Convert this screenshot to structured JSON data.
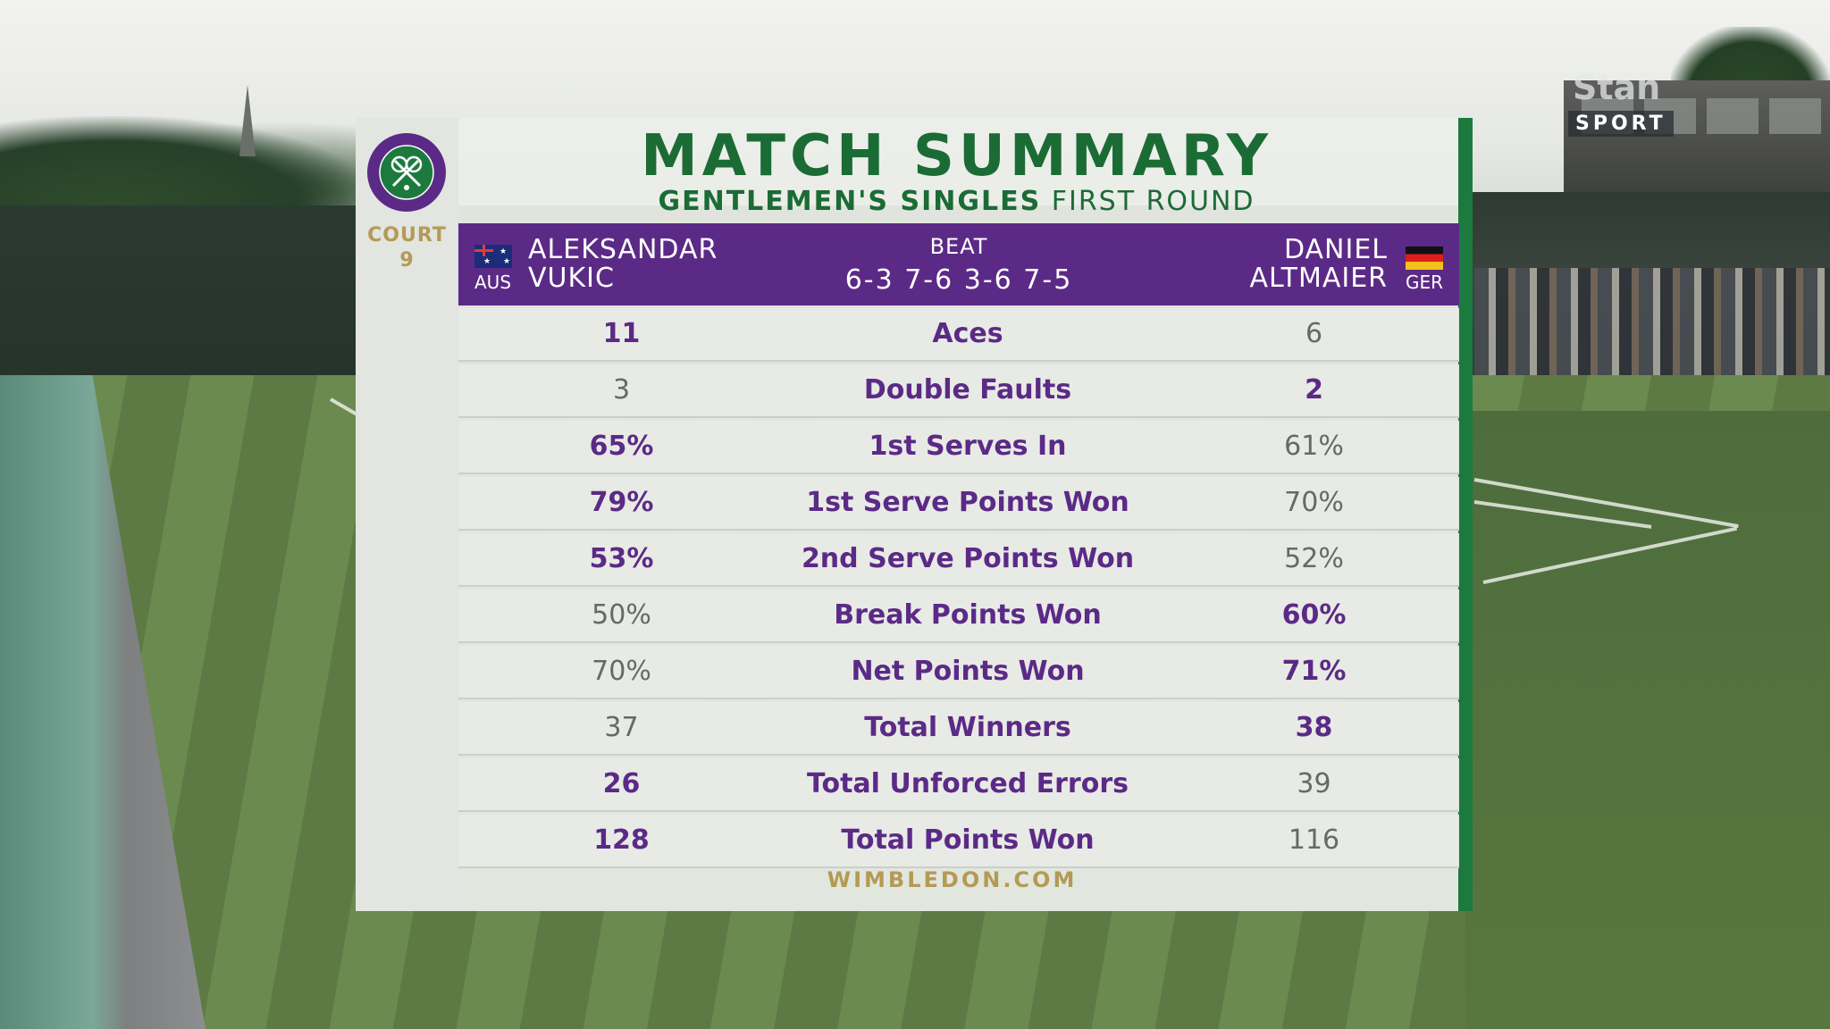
{
  "broadcaster": {
    "logo_text": "Stan",
    "sub_text": "SPORT"
  },
  "graphic": {
    "logo_name": "wimbledon-logo",
    "court_label": "COURT",
    "court_number": "9",
    "title": "MATCH SUMMARY",
    "subtitle_bold": "GENTLEMEN'S SINGLES",
    "subtitle_rest": "FIRST ROUND",
    "player1": {
      "first": "ALEKSANDAR",
      "last": "VUKIC",
      "country": "AUS",
      "flag": "australia-flag-icon"
    },
    "player2": {
      "first": "DANIEL",
      "last": "ALTMAIER",
      "country": "GER",
      "flag": "germany-flag-icon"
    },
    "result_word": "BEAT",
    "score": "6-3 7-6 3-6 7-5",
    "stats": [
      {
        "label": "Aces",
        "p1": "11",
        "p2": "6",
        "winner": "p1"
      },
      {
        "label": "Double Faults",
        "p1": "3",
        "p2": "2",
        "winner": "p2"
      },
      {
        "label": "1st Serves In",
        "p1": "65%",
        "p2": "61%",
        "winner": "p1"
      },
      {
        "label": "1st Serve Points Won",
        "p1": "79%",
        "p2": "70%",
        "winner": "p1"
      },
      {
        "label": "2nd Serve Points Won",
        "p1": "53%",
        "p2": "52%",
        "winner": "p1"
      },
      {
        "label": "Break Points Won",
        "p1": "50%",
        "p2": "60%",
        "winner": "p2"
      },
      {
        "label": "Net Points Won",
        "p1": "70%",
        "p2": "71%",
        "winner": "p2"
      },
      {
        "label": "Total Winners",
        "p1": "37",
        "p2": "38",
        "winner": "p2"
      },
      {
        "label": "Total Unforced Errors",
        "p1": "26",
        "p2": "39",
        "winner": "p1"
      },
      {
        "label": "Total Points Won",
        "p1": "128",
        "p2": "116",
        "winner": "p1"
      }
    ],
    "footer": "WIMBLEDON.COM",
    "colors": {
      "purple": "#5b2a86",
      "green": "#1b6b35",
      "gold": "#b49a55"
    }
  }
}
